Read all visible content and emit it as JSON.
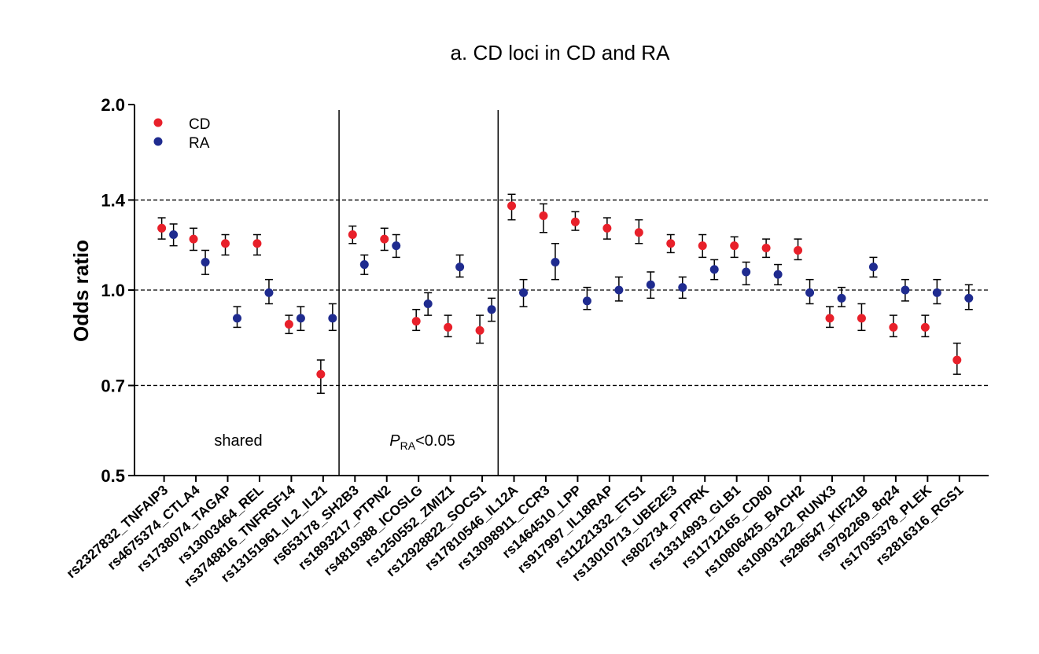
{
  "chart_data": {
    "type": "scatter",
    "title": "a. CD loci in CD and RA",
    "ylabel": "Odds ratio",
    "xlabel": "",
    "ylim": [
      0.5,
      2.0
    ],
    "yticks": [
      "0.5",
      "0.7",
      "1.0",
      "1.4",
      "2.0"
    ],
    "reference_lines": [
      0.7,
      1.0,
      1.4
    ],
    "legend": [
      {
        "name": "CD",
        "color": "#e8202a"
      },
      {
        "name": "RA",
        "color": "#1f2b8f"
      }
    ],
    "groups": [
      {
        "label": "shared",
        "start": 0,
        "end": 5
      },
      {
        "label_italic": "P",
        "label_sub": "RA",
        "label_tail": "<0.05",
        "start": 6,
        "end": 10
      },
      {
        "label": "",
        "start": 11,
        "end": 24
      }
    ],
    "categories": [
      "rs2327832_TNFAIP3",
      "rs4675374_CTLA4",
      "rs1738074_TAGAP",
      "rs13003464_REL",
      "rs3748816_TNFRSF14",
      "rs13151961_IL2_IL21",
      "rs653178_SH2B3",
      "rs1893217_PTPN2",
      "rs4819388_ICOSLG",
      "rs1250552_ZMIZ1",
      "rs12928822_SOCS1",
      "rs17810546_IL12A",
      "rs13098911_CCR3",
      "rs1464510_LPP",
      "rs917997_IL18RAP",
      "rs11221332_ETS1",
      "rs13010713_UBE2E3",
      "rs802734_PTPRK",
      "rs13314993_GLB1",
      "rs11712165_CD80",
      "rs10806425_BACH2",
      "rs10903122_RUNX3",
      "rs296547_KIF21B",
      "rs9792269_8q24",
      "rs17035378_PLEK",
      "rs2816316_RGS1"
    ],
    "series": [
      {
        "name": "CD",
        "values": [
          1.26,
          1.21,
          1.19,
          1.19,
          0.88,
          0.73,
          1.23,
          1.21,
          0.89,
          0.87,
          0.86,
          1.37,
          1.32,
          1.29,
          1.26,
          1.24,
          1.19,
          1.18,
          1.18,
          1.17,
          1.16,
          0.9,
          0.9,
          0.87,
          0.87,
          0.77
        ],
        "lower": [
          1.21,
          1.16,
          1.14,
          1.14,
          0.85,
          0.68,
          1.19,
          1.16,
          0.86,
          0.84,
          0.82,
          1.3,
          1.24,
          1.25,
          1.21,
          1.19,
          1.15,
          1.13,
          1.13,
          1.13,
          1.12,
          0.87,
          0.86,
          0.84,
          0.84,
          0.73
        ],
        "upper": [
          1.31,
          1.26,
          1.23,
          1.23,
          0.91,
          0.77,
          1.27,
          1.26,
          0.93,
          0.91,
          0.91,
          1.43,
          1.38,
          1.34,
          1.31,
          1.3,
          1.23,
          1.23,
          1.22,
          1.21,
          1.21,
          0.94,
          0.95,
          0.91,
          0.91,
          0.82
        ]
      },
      {
        "name": "RA",
        "values": [
          1.23,
          1.11,
          0.9,
          0.99,
          0.9,
          0.9,
          1.1,
          1.18,
          0.95,
          1.09,
          0.93,
          0.99,
          1.11,
          0.96,
          1.0,
          1.02,
          1.01,
          1.08,
          1.07,
          1.06,
          0.99,
          0.97,
          1.09,
          1.0,
          0.99,
          0.97
        ],
        "lower": [
          1.18,
          1.06,
          0.87,
          0.95,
          0.86,
          0.86,
          1.06,
          1.13,
          0.91,
          1.05,
          0.89,
          0.94,
          1.04,
          0.93,
          0.96,
          0.97,
          0.97,
          1.04,
          1.02,
          1.02,
          0.95,
          0.94,
          1.05,
          0.96,
          0.95,
          0.93
        ],
        "upper": [
          1.28,
          1.16,
          0.94,
          1.04,
          0.94,
          0.95,
          1.14,
          1.23,
          0.99,
          1.14,
          0.97,
          1.04,
          1.19,
          1.01,
          1.05,
          1.07,
          1.05,
          1.12,
          1.11,
          1.1,
          1.04,
          1.01,
          1.13,
          1.04,
          1.04,
          1.02
        ]
      }
    ]
  }
}
